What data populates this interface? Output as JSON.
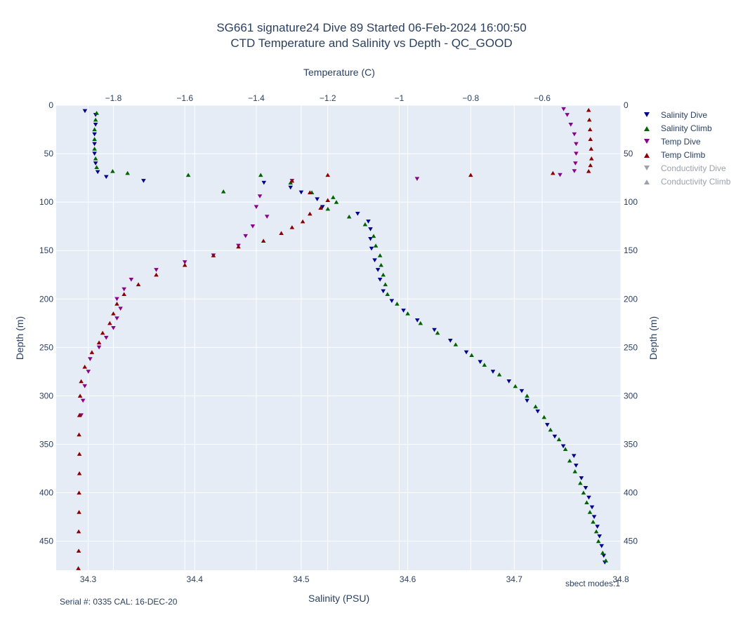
{
  "title": {
    "line1": "SG661 signature24 Dive 89 Started 06-Feb-2024 16:00:50",
    "line2": "CTD Temperature and Salinity vs Depth - QC_GOOD"
  },
  "footnotes": {
    "serial": "Serial #: 0335  CAL: 16-DEC-20",
    "modes": "sbect modes:1"
  },
  "colors": {
    "plot_bg": "#e5ecf6",
    "grid": "#ffffff",
    "salinity_dive": "#00008b",
    "salinity_climb": "#006400",
    "temp_dive": "#8b008b",
    "temp_climb": "#8b0000",
    "legend_dim": "#9aa3ad"
  },
  "legend": [
    {
      "label": "Salinity Dive",
      "color": "#00008b",
      "symbol": "triangle-down",
      "visible": true
    },
    {
      "label": "Salinity Climb",
      "color": "#006400",
      "symbol": "triangle-up",
      "visible": true
    },
    {
      "label": "Temp Dive",
      "color": "#8b008b",
      "symbol": "triangle-down",
      "visible": true
    },
    {
      "label": "Temp Climb",
      "color": "#8b0000",
      "symbol": "triangle-up",
      "visible": true
    },
    {
      "label": "Conductivity Dive",
      "color": "#bbbbbb",
      "symbol": "triangle-down",
      "visible": false
    },
    {
      "label": "Conductivity Climb",
      "color": "#bbbbbb",
      "symbol": "triangle-up",
      "visible": false
    }
  ],
  "chart_data": {
    "type": "scatter",
    "grid": true,
    "legend_position": "right",
    "y": {
      "label": "Depth (m)",
      "range": [
        480,
        0
      ],
      "ticks": [
        0,
        50,
        100,
        150,
        200,
        250,
        300,
        350,
        400,
        450
      ],
      "tick_labels": [
        "0",
        "50",
        "100",
        "150",
        "200",
        "250",
        "300",
        "350",
        "400",
        "450"
      ]
    },
    "x_bottom": {
      "label": "Salinity (PSU)",
      "range": [
        34.27,
        34.8
      ],
      "ticks": [
        34.3,
        34.4,
        34.5,
        34.6,
        34.7,
        34.8
      ],
      "tick_labels": [
        "34.3",
        "34.4",
        "34.5",
        "34.6",
        "34.7",
        "34.8"
      ]
    },
    "x_top": {
      "label": "Temperature (C)",
      "range": [
        -1.96,
        -0.38
      ],
      "ticks": [
        -1.8,
        -1.6,
        -1.4,
        -1.2,
        -1.0,
        -0.8,
        -0.6
      ],
      "tick_labels": [
        "−1.8",
        "−1.6",
        "−1.4",
        "−1.2",
        "−1",
        "−0.8",
        "−0.6"
      ]
    },
    "series": [
      {
        "name": "Salinity Dive",
        "axis": "salinity",
        "marker": "triangle-down",
        "points": [
          [
            34.297,
            6
          ],
          [
            34.307,
            10
          ],
          [
            34.307,
            20
          ],
          [
            34.306,
            30
          ],
          [
            34.306,
            40
          ],
          [
            34.306,
            50
          ],
          [
            34.307,
            60
          ],
          [
            34.309,
            69
          ],
          [
            34.317,
            74
          ],
          [
            34.352,
            78
          ],
          [
            34.465,
            80
          ],
          [
            34.49,
            85
          ],
          [
            34.5,
            90
          ],
          [
            34.515,
            97
          ],
          [
            34.52,
            105
          ],
          [
            34.553,
            112
          ],
          [
            34.563,
            120
          ],
          [
            34.565,
            128
          ],
          [
            34.565,
            138
          ],
          [
            34.566,
            148
          ],
          [
            34.569,
            160
          ],
          [
            34.572,
            170
          ],
          [
            34.574,
            180
          ],
          [
            34.577,
            192
          ],
          [
            34.585,
            202
          ],
          [
            34.596,
            212
          ],
          [
            34.609,
            222
          ],
          [
            34.625,
            232
          ],
          [
            34.64,
            243
          ],
          [
            34.655,
            255
          ],
          [
            34.668,
            265
          ],
          [
            34.68,
            275
          ],
          [
            34.695,
            285
          ],
          [
            34.707,
            295
          ],
          [
            34.712,
            305
          ],
          [
            34.722,
            316
          ],
          [
            34.731,
            330
          ],
          [
            34.738,
            342
          ],
          [
            34.746,
            352
          ],
          [
            34.756,
            362
          ],
          [
            34.758,
            372
          ],
          [
            34.763,
            385
          ],
          [
            34.767,
            395
          ],
          [
            34.77,
            405
          ],
          [
            34.773,
            415
          ],
          [
            34.775,
            425
          ],
          [
            34.778,
            435
          ],
          [
            34.78,
            445
          ],
          [
            34.782,
            455
          ],
          [
            34.784,
            465
          ],
          [
            34.785,
            472
          ]
        ]
      },
      {
        "name": "Salinity Climb",
        "axis": "salinity",
        "marker": "triangle-up",
        "points": [
          [
            34.308,
            8
          ],
          [
            34.307,
            15
          ],
          [
            34.306,
            25
          ],
          [
            34.306,
            35
          ],
          [
            34.306,
            45
          ],
          [
            34.307,
            55
          ],
          [
            34.308,
            64
          ],
          [
            34.323,
            68
          ],
          [
            34.337,
            70
          ],
          [
            34.394,
            72
          ],
          [
            34.427,
            89
          ],
          [
            34.462,
            72
          ],
          [
            34.49,
            80
          ],
          [
            34.51,
            90
          ],
          [
            34.53,
            95
          ],
          [
            34.533,
            100
          ],
          [
            34.525,
            107
          ],
          [
            34.545,
            115
          ],
          [
            34.56,
            123
          ],
          [
            34.568,
            135
          ],
          [
            34.57,
            145
          ],
          [
            34.574,
            155
          ],
          [
            34.575,
            165
          ],
          [
            34.577,
            175
          ],
          [
            34.579,
            185
          ],
          [
            34.581,
            195
          ],
          [
            34.59,
            205
          ],
          [
            34.6,
            215
          ],
          [
            34.612,
            225
          ],
          [
            34.628,
            235
          ],
          [
            34.645,
            247
          ],
          [
            34.66,
            258
          ],
          [
            34.672,
            268
          ],
          [
            34.686,
            278
          ],
          [
            34.701,
            290
          ],
          [
            34.712,
            300
          ],
          [
            34.72,
            311
          ],
          [
            34.728,
            322
          ],
          [
            34.734,
            335
          ],
          [
            34.742,
            345
          ],
          [
            34.748,
            355
          ],
          [
            34.752,
            367
          ],
          [
            34.757,
            378
          ],
          [
            34.762,
            390
          ],
          [
            34.765,
            400
          ],
          [
            34.768,
            410
          ],
          [
            34.771,
            420
          ],
          [
            34.774,
            430
          ],
          [
            34.777,
            440
          ],
          [
            34.779,
            450
          ],
          [
            34.783,
            462
          ],
          [
            34.786,
            470
          ]
        ]
      },
      {
        "name": "Temp Dive",
        "axis": "temperature",
        "marker": "triangle-down",
        "points": [
          [
            -0.54,
            4
          ],
          [
            -0.53,
            10
          ],
          [
            -0.52,
            20
          ],
          [
            -0.51,
            30
          ],
          [
            -0.505,
            40
          ],
          [
            -0.505,
            50
          ],
          [
            -0.507,
            60
          ],
          [
            -0.51,
            68
          ],
          [
            -0.55,
            72
          ],
          [
            -0.95,
            76
          ],
          [
            -1.3,
            78
          ],
          [
            -1.39,
            94
          ],
          [
            -1.4,
            105
          ],
          [
            -1.37,
            115
          ],
          [
            -1.41,
            125
          ],
          [
            -1.43,
            135
          ],
          [
            -1.45,
            145
          ],
          [
            -1.52,
            155
          ],
          [
            -1.6,
            162
          ],
          [
            -1.68,
            170
          ],
          [
            -1.75,
            180
          ],
          [
            -1.77,
            190
          ],
          [
            -1.79,
            200
          ],
          [
            -1.78,
            210
          ],
          [
            -1.79,
            220
          ],
          [
            -1.8,
            230
          ],
          [
            -1.82,
            240
          ],
          [
            -1.84,
            250
          ],
          [
            -1.865,
            262
          ],
          [
            -1.87,
            275
          ],
          [
            -1.88,
            290
          ],
          [
            -1.885,
            305
          ],
          [
            -1.89,
            320
          ]
        ]
      },
      {
        "name": "Temp Climb",
        "axis": "temperature",
        "marker": "triangle-up",
        "points": [
          [
            -0.47,
            5
          ],
          [
            -0.468,
            15
          ],
          [
            -0.466,
            25
          ],
          [
            -0.465,
            35
          ],
          [
            -0.463,
            45
          ],
          [
            -0.462,
            55
          ],
          [
            -0.465,
            62
          ],
          [
            -0.47,
            68
          ],
          [
            -0.57,
            70
          ],
          [
            -0.8,
            72
          ],
          [
            -1.2,
            72
          ],
          [
            -1.3,
            78
          ],
          [
            -1.25,
            90
          ],
          [
            -1.2,
            98
          ],
          [
            -1.22,
            106
          ],
          [
            -1.25,
            112
          ],
          [
            -1.27,
            120
          ],
          [
            -1.3,
            126
          ],
          [
            -1.33,
            132
          ],
          [
            -1.38,
            140
          ],
          [
            -1.45,
            146
          ],
          [
            -1.52,
            155
          ],
          [
            -1.6,
            165
          ],
          [
            -1.68,
            175
          ],
          [
            -1.73,
            185
          ],
          [
            -1.77,
            195
          ],
          [
            -1.79,
            205
          ],
          [
            -1.8,
            215
          ],
          [
            -1.81,
            225
          ],
          [
            -1.83,
            235
          ],
          [
            -1.84,
            245
          ],
          [
            -1.86,
            255
          ],
          [
            -1.88,
            270
          ],
          [
            -1.89,
            285
          ],
          [
            -1.893,
            300
          ],
          [
            -1.895,
            320
          ],
          [
            -1.896,
            340
          ],
          [
            -1.895,
            360
          ],
          [
            -1.895,
            380
          ],
          [
            -1.896,
            400
          ],
          [
            -1.896,
            420
          ],
          [
            -1.897,
            440
          ],
          [
            -1.897,
            460
          ],
          [
            -1.898,
            478
          ]
        ]
      }
    ]
  }
}
